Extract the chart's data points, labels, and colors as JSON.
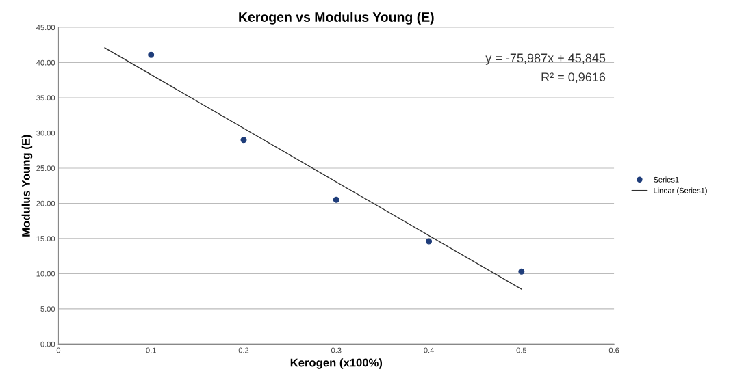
{
  "chart_data": {
    "type": "scatter",
    "title": "Kerogen vs Modulus Young (E)",
    "xlabel": "Kerogen (x100%)",
    "ylabel": "Modulus Young (E)",
    "x": [
      0.1,
      0.2,
      0.3,
      0.4,
      0.5
    ],
    "series": [
      {
        "name": "Series1",
        "type": "scatter",
        "color": "#1f3d7a",
        "values": [
          41.1,
          29.0,
          20.5,
          14.6,
          10.3
        ],
        "marker": "circle"
      },
      {
        "name": "Linear (Series1)",
        "type": "line",
        "color": "#303030",
        "x": [
          0.05,
          0.5
        ],
        "values": [
          42.1,
          7.8
        ],
        "line_style": "solid",
        "marker": "none"
      }
    ],
    "xlim": [
      0,
      0.6
    ],
    "xticks": [
      0,
      0.1,
      0.2,
      0.3,
      0.4,
      0.5,
      0.6
    ],
    "ylim": [
      0,
      45
    ],
    "yticks": [
      {
        "value": 0,
        "label": "0.00"
      },
      {
        "value": 5,
        "label": "5.00"
      },
      {
        "value": 10,
        "label": "10.00"
      },
      {
        "value": 15,
        "label": "15.00"
      },
      {
        "value": 20,
        "label": "20.00"
      },
      {
        "value": 25,
        "label": "25.00"
      },
      {
        "value": 30,
        "label": "30.00"
      },
      {
        "value": 35,
        "label": "35.00"
      },
      {
        "value": 40,
        "label": "40.00"
      },
      {
        "value": 45,
        "label": "45.00"
      }
    ],
    "grid": "y",
    "legend": "right",
    "annotations": [
      "y = -75,987x + 45,845",
      "R² = 0,9616"
    ]
  }
}
